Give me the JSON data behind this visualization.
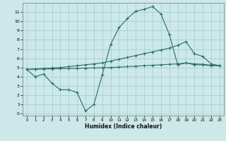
{
  "xlabel": "Humidex (Indice chaleur)",
  "bg_color": "#cce8e8",
  "grid_color": "#aacfcf",
  "line_color": "#2a6b6b",
  "xlim": [
    -0.5,
    23.5
  ],
  "ylim": [
    -0.2,
    12
  ],
  "yticks": [
    0,
    1,
    2,
    3,
    4,
    5,
    6,
    7,
    8,
    9,
    10,
    11
  ],
  "xticks": [
    0,
    1,
    2,
    3,
    4,
    5,
    6,
    7,
    8,
    9,
    10,
    11,
    12,
    13,
    14,
    15,
    16,
    17,
    18,
    19,
    20,
    21,
    22,
    23
  ],
  "series1_x": [
    0,
    1,
    2,
    3,
    4,
    5,
    6,
    7,
    8,
    9,
    10,
    11,
    12,
    13,
    14,
    15,
    16,
    17,
    18,
    19,
    20,
    21,
    22,
    23
  ],
  "series1_y": [
    4.8,
    4.0,
    4.3,
    3.3,
    2.6,
    2.6,
    2.3,
    0.3,
    1.0,
    4.2,
    7.5,
    9.3,
    10.3,
    11.1,
    11.3,
    11.6,
    10.8,
    8.6,
    5.3,
    5.5,
    5.3,
    5.3,
    5.2,
    5.2
  ],
  "series2_x": [
    0,
    1,
    2,
    3,
    4,
    5,
    6,
    7,
    8,
    9,
    10,
    11,
    12,
    13,
    14,
    15,
    16,
    17,
    18,
    19,
    20,
    21,
    22,
    23
  ],
  "series2_y": [
    4.8,
    4.85,
    4.9,
    4.95,
    5.0,
    5.1,
    5.2,
    5.3,
    5.4,
    5.5,
    5.7,
    5.9,
    6.1,
    6.3,
    6.5,
    6.7,
    6.9,
    7.1,
    7.4,
    7.8,
    6.5,
    6.2,
    5.4,
    5.2
  ],
  "series3_x": [
    0,
    1,
    2,
    3,
    4,
    5,
    6,
    7,
    8,
    9,
    10,
    11,
    12,
    13,
    14,
    15,
    16,
    17,
    18,
    19,
    20,
    21,
    22,
    23
  ],
  "series3_y": [
    4.8,
    4.82,
    4.84,
    4.86,
    4.88,
    4.9,
    4.92,
    4.94,
    4.96,
    4.98,
    5.0,
    5.05,
    5.1,
    5.15,
    5.2,
    5.25,
    5.3,
    5.35,
    5.4,
    5.5,
    5.4,
    5.35,
    5.25,
    5.2
  ]
}
